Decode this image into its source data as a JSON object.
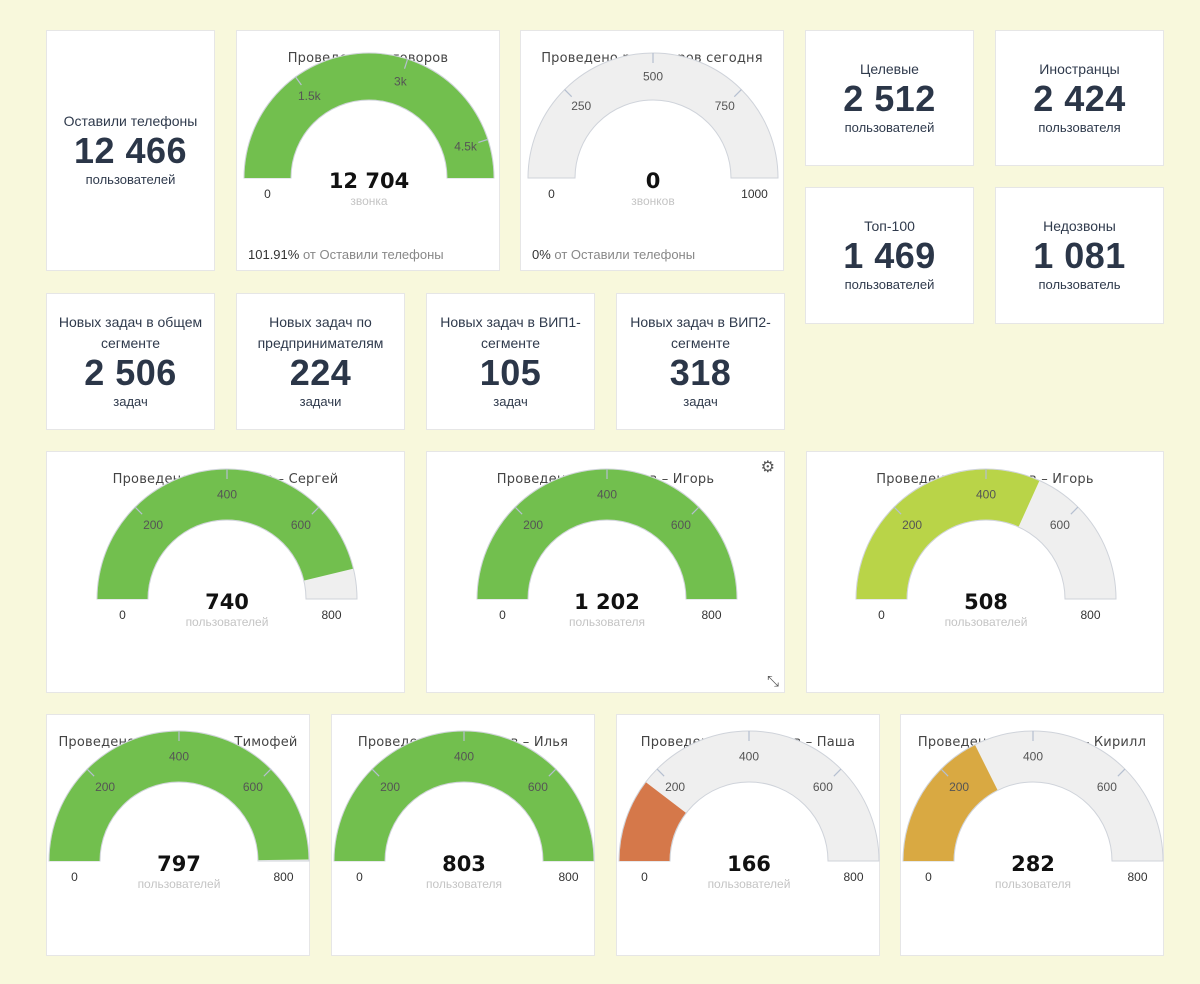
{
  "stats": {
    "left_phones": {
      "label": "Оставили телефоны",
      "value": "12 466",
      "unit": "пользователей"
    },
    "target": {
      "label": "Целевые",
      "value": "2 512",
      "unit": "пользователей"
    },
    "foreigners": {
      "label": "Иностранцы",
      "value": "2 424",
      "unit": "пользователя"
    },
    "top100": {
      "label": "Топ-100",
      "value": "1 469",
      "unit": "пользователей"
    },
    "missed": {
      "label": "Недозвоны",
      "value": "1 081",
      "unit": "пользователь"
    },
    "tasks_general": {
      "label": "Новых задач в общем сегменте",
      "value": "2 506",
      "unit": "задач"
    },
    "tasks_entrepreneurs": {
      "label": "Новых задач по предпринимателям",
      "value": "224",
      "unit": "задачи"
    },
    "tasks_vip1": {
      "label": "Новых задач в ВИП1-сегменте",
      "value": "105",
      "unit": "задач"
    },
    "tasks_vip2": {
      "label": "Новых задач в ВИП2-сегменте",
      "value": "318",
      "unit": "задач"
    }
  },
  "chart_data": [
    {
      "type": "gauge",
      "id": "total",
      "title": "Проведено разговоров",
      "value": 12704,
      "value_label": "12 704",
      "unit": "звонка",
      "min": 0,
      "max": 5000,
      "ticks": [
        {
          "v": 1500,
          "t": "1.5k"
        },
        {
          "v": 3000,
          "t": "3k"
        },
        {
          "v": 4500,
          "t": "4.5k"
        }
      ],
      "min_label": "0",
      "max_label": "",
      "color": "#72bf4e",
      "footer_value": "101.91%",
      "footer_text": "от Оставили телефоны"
    },
    {
      "type": "gauge",
      "id": "today",
      "title": "Проведено разговоров сегодня",
      "value": 0,
      "value_label": "0",
      "unit": "звонков",
      "min": 0,
      "max": 1000,
      "ticks": [
        {
          "v": 250,
          "t": "250"
        },
        {
          "v": 500,
          "t": "500"
        },
        {
          "v": 750,
          "t": "750"
        }
      ],
      "min_label": "0",
      "max_label": "1000",
      "color": "#72bf4e",
      "footer_value": "0%",
      "footer_text": "от Оставили телефоны"
    },
    {
      "type": "gauge",
      "id": "sergey",
      "title": "Проведено разговоров – Сергей",
      "value": 740,
      "value_label": "740",
      "unit": "пользователей",
      "min": 0,
      "max": 800,
      "ticks": [
        {
          "v": 200,
          "t": "200"
        },
        {
          "v": 400,
          "t": "400"
        },
        {
          "v": 600,
          "t": "600"
        }
      ],
      "min_label": "0",
      "max_label": "800",
      "color": "#72bf4e"
    },
    {
      "type": "gauge",
      "id": "igor1",
      "title": "Проведено разговоров – Игорь",
      "value": 1202,
      "value_label": "1 202",
      "unit": "пользователя",
      "min": 0,
      "max": 800,
      "ticks": [
        {
          "v": 200,
          "t": "200"
        },
        {
          "v": 400,
          "t": "400"
        },
        {
          "v": 600,
          "t": "600"
        }
      ],
      "min_label": "0",
      "max_label": "800",
      "color": "#72bf4e"
    },
    {
      "type": "gauge",
      "id": "igor2",
      "title": "Проведено разговоров – Игорь",
      "value": 508,
      "value_label": "508",
      "unit": "пользователей",
      "min": 0,
      "max": 800,
      "ticks": [
        {
          "v": 200,
          "t": "200"
        },
        {
          "v": 400,
          "t": "400"
        },
        {
          "v": 600,
          "t": "600"
        }
      ],
      "min_label": "0",
      "max_label": "800",
      "color": "#b9d448"
    },
    {
      "type": "gauge",
      "id": "timofey",
      "title": "Проведено разговоров – Тимофей",
      "value": 797,
      "value_label": "797",
      "unit": "пользователей",
      "min": 0,
      "max": 800,
      "ticks": [
        {
          "v": 200,
          "t": "200"
        },
        {
          "v": 400,
          "t": "400"
        },
        {
          "v": 600,
          "t": "600"
        }
      ],
      "min_label": "0",
      "max_label": "800",
      "color": "#72bf4e"
    },
    {
      "type": "gauge",
      "id": "ilya",
      "title": "Проведено разговоров – Илья",
      "value": 803,
      "value_label": "803",
      "unit": "пользователя",
      "min": 0,
      "max": 800,
      "ticks": [
        {
          "v": 200,
          "t": "200"
        },
        {
          "v": 400,
          "t": "400"
        },
        {
          "v": 600,
          "t": "600"
        }
      ],
      "min_label": "0",
      "max_label": "800",
      "color": "#72bf4e"
    },
    {
      "type": "gauge",
      "id": "pasha",
      "title": "Проведено разговоров – Паша",
      "value": 166,
      "value_label": "166",
      "unit": "пользователей",
      "min": 0,
      "max": 800,
      "ticks": [
        {
          "v": 200,
          "t": "200"
        },
        {
          "v": 400,
          "t": "400"
        },
        {
          "v": 600,
          "t": "600"
        }
      ],
      "min_label": "0",
      "max_label": "800",
      "color": "#d5784a"
    },
    {
      "type": "gauge",
      "id": "kirill",
      "title": "Проведено разговоров – Кирилл",
      "value": 282,
      "value_label": "282",
      "unit": "пользователя",
      "min": 0,
      "max": 800,
      "ticks": [
        {
          "v": 200,
          "t": "200"
        },
        {
          "v": 400,
          "t": "400"
        },
        {
          "v": 600,
          "t": "600"
        }
      ],
      "min_label": "0",
      "max_label": "800",
      "color": "#d9a942"
    }
  ],
  "icons": {
    "settings": "gear-icon",
    "resize": "resize-icon"
  }
}
